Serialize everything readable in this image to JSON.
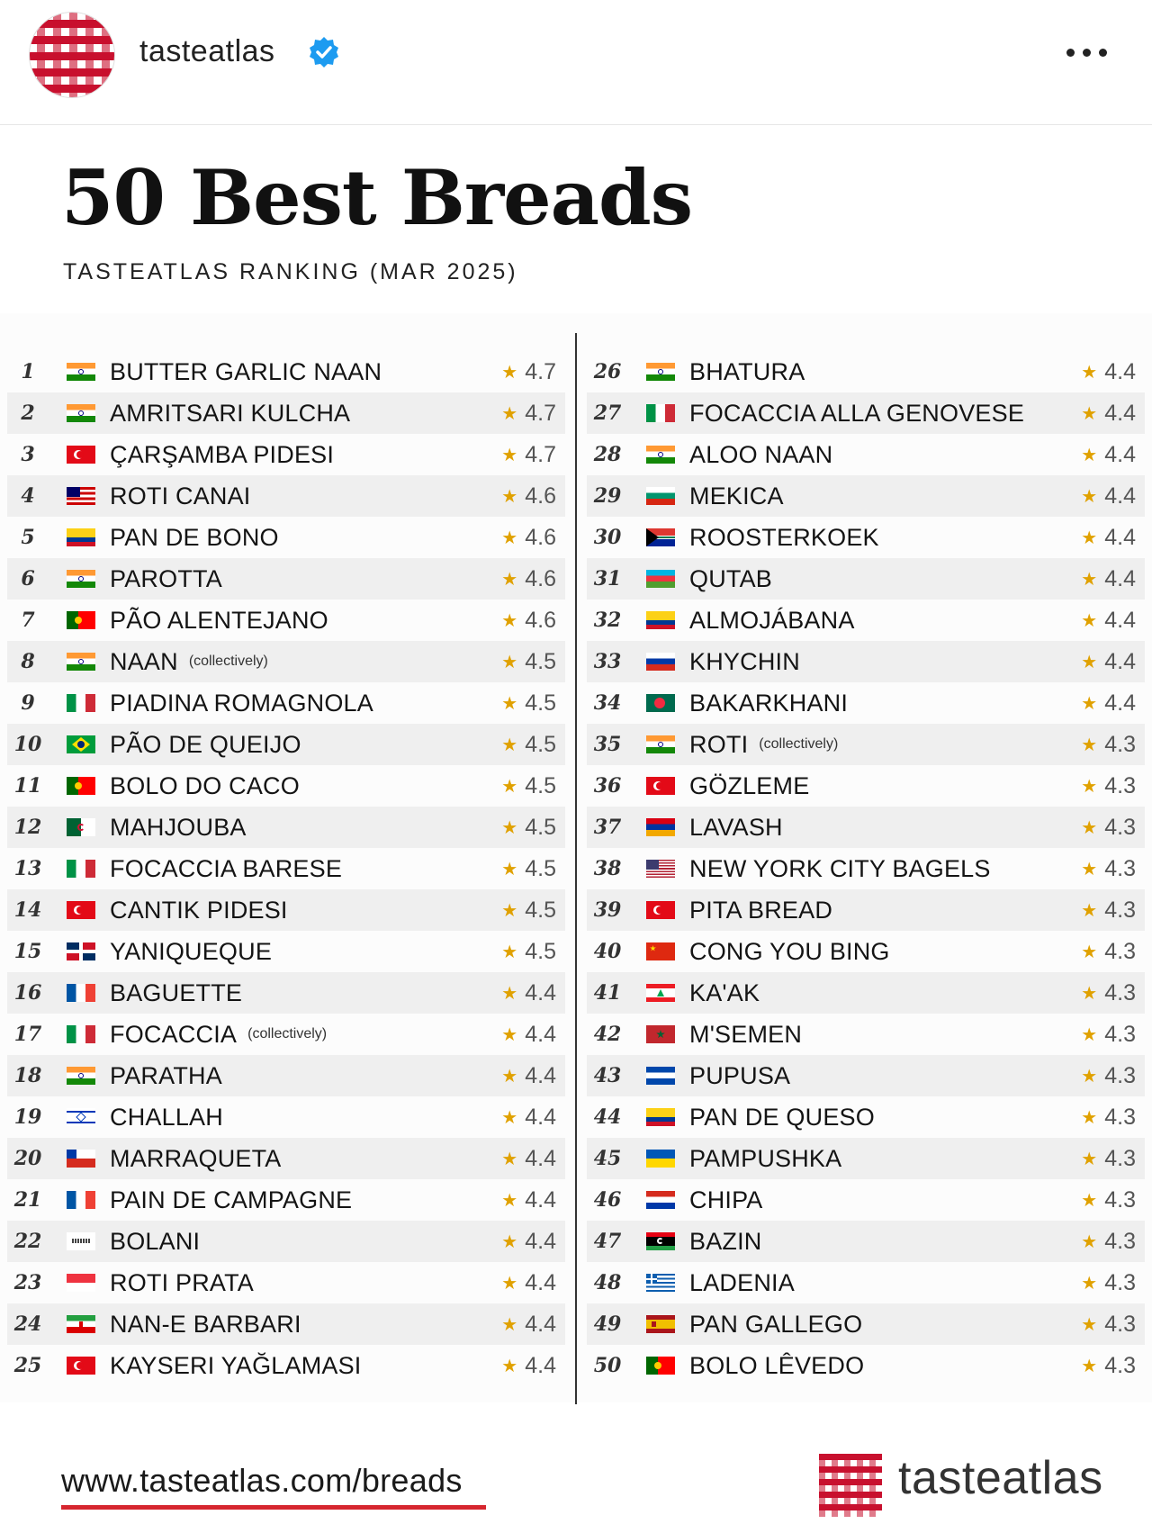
{
  "header": {
    "username": "tasteatlas",
    "verified_color": "#1d9bf0",
    "more_icon": "more-horizontal-icon"
  },
  "infographic": {
    "title": "50 Best Breads",
    "subtitle": "TASTEATLAS RANKING (MAR 2025)",
    "rows": [
      {
        "rank": "1",
        "flag": "india",
        "name": "BUTTER GARLIC NAAN",
        "note": "",
        "rating": "4.7"
      },
      {
        "rank": "2",
        "flag": "india",
        "name": "AMRITSARI KULCHA",
        "note": "",
        "rating": "4.7"
      },
      {
        "rank": "3",
        "flag": "turkey",
        "name": "ÇARŞAMBA PIDESI",
        "note": "",
        "rating": "4.7"
      },
      {
        "rank": "4",
        "flag": "malaysia",
        "name": "ROTI CANAI",
        "note": "",
        "rating": "4.6"
      },
      {
        "rank": "5",
        "flag": "colombia",
        "name": "PAN DE BONO",
        "note": "",
        "rating": "4.6"
      },
      {
        "rank": "6",
        "flag": "india",
        "name": "PAROTTA",
        "note": "",
        "rating": "4.6"
      },
      {
        "rank": "7",
        "flag": "portugal",
        "name": "PÃO ALENTEJANO",
        "note": "",
        "rating": "4.6"
      },
      {
        "rank": "8",
        "flag": "india",
        "name": "NAAN",
        "note": "(collectively)",
        "rating": "4.5"
      },
      {
        "rank": "9",
        "flag": "italy",
        "name": "PIADINA ROMAGNOLA",
        "note": "",
        "rating": "4.5"
      },
      {
        "rank": "10",
        "flag": "brazil",
        "name": "PÃO DE QUEIJO",
        "note": "",
        "rating": "4.5"
      },
      {
        "rank": "11",
        "flag": "portugal",
        "name": "BOLO DO CACO",
        "note": "",
        "rating": "4.5"
      },
      {
        "rank": "12",
        "flag": "algeria",
        "name": "MAHJOUBA",
        "note": "",
        "rating": "4.5"
      },
      {
        "rank": "13",
        "flag": "italy",
        "name": "FOCACCIA BARESE",
        "note": "",
        "rating": "4.5"
      },
      {
        "rank": "14",
        "flag": "turkey",
        "name": "CANTIK PIDESI",
        "note": "",
        "rating": "4.5"
      },
      {
        "rank": "15",
        "flag": "dominican",
        "name": "YANIQUEQUE",
        "note": "",
        "rating": "4.5"
      },
      {
        "rank": "16",
        "flag": "france",
        "name": "BAGUETTE",
        "note": "",
        "rating": "4.4"
      },
      {
        "rank": "17",
        "flag": "italy",
        "name": "FOCACCIA",
        "note": "(collectively)",
        "rating": "4.4"
      },
      {
        "rank": "18",
        "flag": "india",
        "name": "PARATHA",
        "note": "",
        "rating": "4.4"
      },
      {
        "rank": "19",
        "flag": "israel",
        "name": "CHALLAH",
        "note": "",
        "rating": "4.4"
      },
      {
        "rank": "20",
        "flag": "chile",
        "name": "MARRAQUETA",
        "note": "",
        "rating": "4.4"
      },
      {
        "rank": "21",
        "flag": "france",
        "name": "PAIN DE CAMPAGNE",
        "note": "",
        "rating": "4.4"
      },
      {
        "rank": "22",
        "flag": "afghanistan",
        "name": "BOLANI",
        "note": "",
        "rating": "4.4"
      },
      {
        "rank": "23",
        "flag": "singapore",
        "name": "ROTI PRATA",
        "note": "",
        "rating": "4.4"
      },
      {
        "rank": "24",
        "flag": "iran",
        "name": "NAN-E BARBARI",
        "note": "",
        "rating": "4.4"
      },
      {
        "rank": "25",
        "flag": "turkey",
        "name": "KAYSERI YAĞLAMASI",
        "note": "",
        "rating": "4.4"
      },
      {
        "rank": "26",
        "flag": "india",
        "name": "BHATURA",
        "note": "",
        "rating": "4.4"
      },
      {
        "rank": "27",
        "flag": "italy",
        "name": "FOCACCIA ALLA GENOVESE",
        "note": "",
        "rating": "4.4"
      },
      {
        "rank": "28",
        "flag": "india",
        "name": "ALOO NAAN",
        "note": "",
        "rating": "4.4"
      },
      {
        "rank": "29",
        "flag": "bulgaria",
        "name": "MEKICA",
        "note": "",
        "rating": "4.4"
      },
      {
        "rank": "30",
        "flag": "southafrica",
        "name": "ROOSTERKOEK",
        "note": "",
        "rating": "4.4"
      },
      {
        "rank": "31",
        "flag": "azerbaijan",
        "name": "QUTAB",
        "note": "",
        "rating": "4.4"
      },
      {
        "rank": "32",
        "flag": "colombia",
        "name": "ALMOJÁBANA",
        "note": "",
        "rating": "4.4"
      },
      {
        "rank": "33",
        "flag": "russia",
        "name": "KHYCHIN",
        "note": "",
        "rating": "4.4"
      },
      {
        "rank": "34",
        "flag": "bangladesh",
        "name": "BAKARKHANI",
        "note": "",
        "rating": "4.4"
      },
      {
        "rank": "35",
        "flag": "india",
        "name": "ROTI",
        "note": "(collectively)",
        "rating": "4.3"
      },
      {
        "rank": "36",
        "flag": "turkey",
        "name": "GÖZLEME",
        "note": "",
        "rating": "4.3"
      },
      {
        "rank": "37",
        "flag": "armenia",
        "name": "LAVASH",
        "note": "",
        "rating": "4.3"
      },
      {
        "rank": "38",
        "flag": "usa",
        "name": "NEW YORK CITY BAGELS",
        "note": "",
        "rating": "4.3"
      },
      {
        "rank": "39",
        "flag": "turkey",
        "name": "PITA BREAD",
        "note": "",
        "rating": "4.3"
      },
      {
        "rank": "40",
        "flag": "china",
        "name": "CONG YOU BING",
        "note": "",
        "rating": "4.3"
      },
      {
        "rank": "41",
        "flag": "lebanon",
        "name": "KA'AK",
        "note": "",
        "rating": "4.3"
      },
      {
        "rank": "42",
        "flag": "morocco",
        "name": "M'SEMEN",
        "note": "",
        "rating": "4.3"
      },
      {
        "rank": "43",
        "flag": "elsalvador",
        "name": "PUPUSA",
        "note": "",
        "rating": "4.3"
      },
      {
        "rank": "44",
        "flag": "colombia",
        "name": "PAN DE QUESO",
        "note": "",
        "rating": "4.3"
      },
      {
        "rank": "45",
        "flag": "ukraine",
        "name": "PAMPUSHKA",
        "note": "",
        "rating": "4.3"
      },
      {
        "rank": "46",
        "flag": "paraguay",
        "name": "CHIPA",
        "note": "",
        "rating": "4.3"
      },
      {
        "rank": "47",
        "flag": "libya",
        "name": "BAZIN",
        "note": "",
        "rating": "4.3"
      },
      {
        "rank": "48",
        "flag": "greece",
        "name": "LADENIA",
        "note": "",
        "rating": "4.3"
      },
      {
        "rank": "49",
        "flag": "spain",
        "name": "PAN GALLEGO",
        "note": "",
        "rating": "4.3"
      },
      {
        "rank": "50",
        "flag": "portugal",
        "name": "BOLO LÊVEDO",
        "note": "",
        "rating": "4.3"
      }
    ],
    "star_color": "#e0a100",
    "footer_url": "www.tasteatlas.com/breads",
    "footer_accent": "#d6262f",
    "logo_text": "tasteatlas"
  }
}
